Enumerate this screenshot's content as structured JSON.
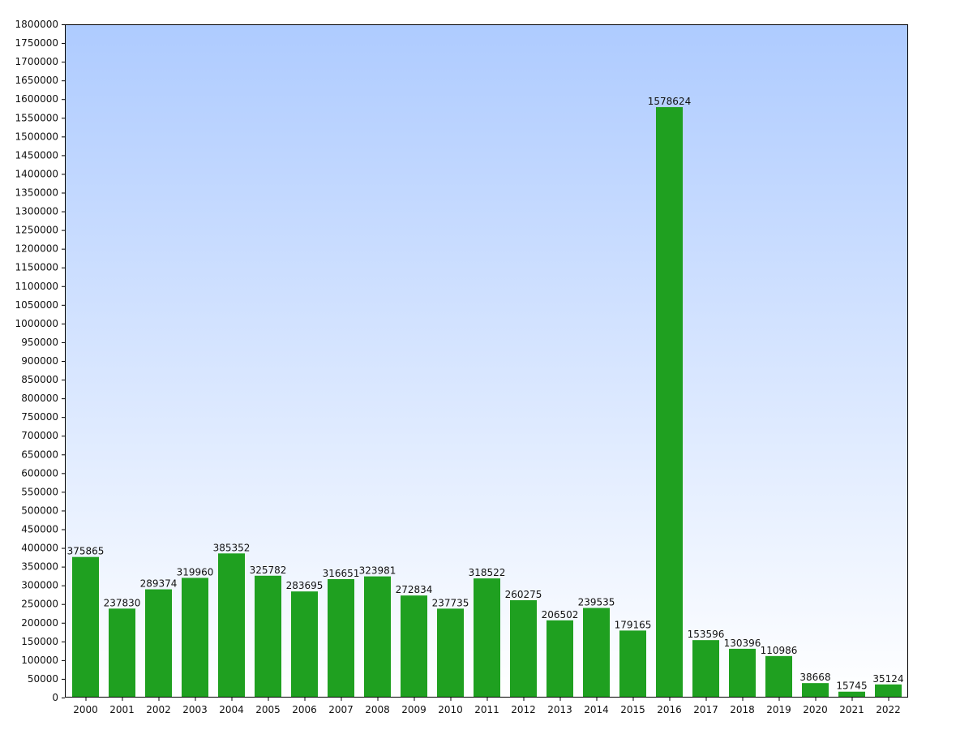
{
  "chart_data": {
    "type": "bar",
    "categories": [
      "2000",
      "2001",
      "2002",
      "2003",
      "2004",
      "2005",
      "2006",
      "2007",
      "2008",
      "2009",
      "2010",
      "2011",
      "2012",
      "2013",
      "2014",
      "2015",
      "2016",
      "2017",
      "2018",
      "2019",
      "2020",
      "2021",
      "2022"
    ],
    "series": [
      {
        "values": [
          375865,
          237830,
          289374,
          319960,
          385352,
          325782,
          283695,
          316651,
          323981,
          272834,
          237735,
          318522,
          260275,
          206502,
          239535,
          179165,
          1578624,
          153596,
          130396,
          110986,
          38668,
          15745,
          35124
        ]
      }
    ],
    "data_labels": [
      "375865",
      "237830",
      "289374",
      "319960",
      "385352",
      "325782",
      "283695",
      "316651",
      "323981",
      "272834",
      "237735",
      "318522",
      "260275",
      "206502",
      "239535",
      "179165",
      "1578624",
      "153596",
      "130396",
      "110986",
      "38668",
      "15745",
      "35124"
    ],
    "y_tick_labels": [
      "0",
      "50000",
      "100000",
      "150000",
      "200000",
      "250000",
      "300000",
      "350000",
      "400000",
      "450000",
      "500000",
      "550000",
      "600000",
      "650000",
      "700000",
      "750000",
      "800000",
      "850000",
      "900000",
      "950000",
      "1000000",
      "1050000",
      "1100000",
      "1150000",
      "1200000",
      "1250000",
      "1300000",
      "1350000",
      "1400000",
      "1450000",
      "1500000",
      "1550000",
      "1600000",
      "1650000",
      "1700000",
      "1750000",
      "1800000"
    ],
    "ylim": [
      0,
      1800000
    ],
    "y_tick_step": 50000,
    "grid": false,
    "legend": "none",
    "colors": {
      "bar": "#1fa020",
      "plot_bg_top": "#aecbff",
      "plot_bg_bottom": "#ffffff",
      "frame": "#000000",
      "text": "#111111"
    }
  }
}
